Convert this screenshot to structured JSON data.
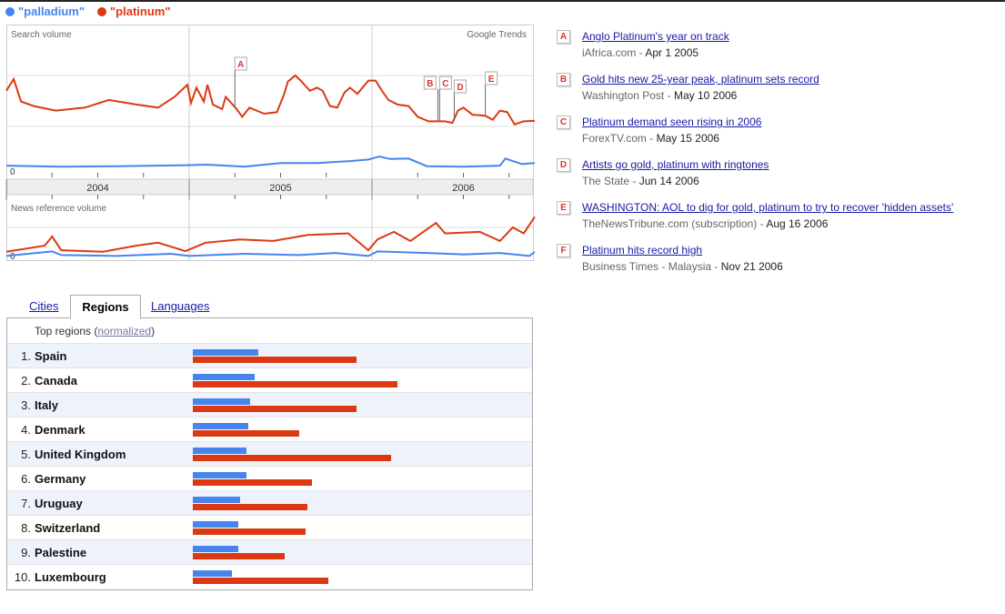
{
  "legend": [
    {
      "label": "\"palladium\"",
      "color": "#4684ee"
    },
    {
      "label": "\"platinum\"",
      "color": "#dc3912"
    }
  ],
  "chart_data": [
    {
      "type": "line",
      "title": "Search volume",
      "brand": "Google Trends",
      "x_range": [
        2004.0,
        2006.89
      ],
      "x_ticks": [
        "2004",
        "2005",
        "2006"
      ],
      "y_zero_label": "0",
      "grid": true,
      "series": [
        {
          "name": "\"platinum\"",
          "color": "#dc3912",
          "points": [
            [
              0,
              1.7
            ],
            [
              0.04,
              1.93
            ],
            [
              0.08,
              1.49
            ],
            [
              0.15,
              1.4
            ],
            [
              0.27,
              1.31
            ],
            [
              0.43,
              1.37
            ],
            [
              0.56,
              1.52
            ],
            [
              0.71,
              1.43
            ],
            [
              0.83,
              1.37
            ],
            [
              0.92,
              1.58
            ],
            [
              0.99,
              1.82
            ],
            [
              1.01,
              1.46
            ],
            [
              1.04,
              1.76
            ],
            [
              1.08,
              1.49
            ],
            [
              1.1,
              1.82
            ],
            [
              1.13,
              1.43
            ],
            [
              1.18,
              1.34
            ],
            [
              1.2,
              1.58
            ],
            [
              1.26,
              1.34
            ],
            [
              1.29,
              1.19
            ],
            [
              1.33,
              1.37
            ],
            [
              1.41,
              1.25
            ],
            [
              1.48,
              1.28
            ],
            [
              1.52,
              1.64
            ],
            [
              1.54,
              1.88
            ],
            [
              1.58,
              2.0
            ],
            [
              1.61,
              1.9
            ],
            [
              1.66,
              1.7
            ],
            [
              1.7,
              1.76
            ],
            [
              1.73,
              1.7
            ],
            [
              1.77,
              1.4
            ],
            [
              1.81,
              1.37
            ],
            [
              1.85,
              1.67
            ],
            [
              1.88,
              1.76
            ],
            [
              1.92,
              1.64
            ],
            [
              1.98,
              1.9
            ],
            [
              2.02,
              1.9
            ],
            [
              2.06,
              1.67
            ],
            [
              2.09,
              1.52
            ],
            [
              2.14,
              1.43
            ],
            [
              2.2,
              1.4
            ],
            [
              2.25,
              1.19
            ],
            [
              2.31,
              1.1
            ],
            [
              2.4,
              1.1
            ],
            [
              2.44,
              1.07
            ],
            [
              2.47,
              1.31
            ],
            [
              2.5,
              1.37
            ],
            [
              2.55,
              1.23
            ],
            [
              2.62,
              1.21
            ],
            [
              2.66,
              1.13
            ],
            [
              2.7,
              1.31
            ],
            [
              2.74,
              1.28
            ],
            [
              2.78,
              1.04
            ],
            [
              2.83,
              1.1
            ],
            [
              2.89,
              1.11
            ]
          ]
        },
        {
          "name": "\"palladium\"",
          "color": "#4684ee",
          "points": [
            [
              0,
              0.23
            ],
            [
              0.3,
              0.21
            ],
            [
              0.6,
              0.22
            ],
            [
              0.99,
              0.24
            ],
            [
              1.1,
              0.25
            ],
            [
              1.3,
              0.21
            ],
            [
              1.5,
              0.28
            ],
            [
              1.7,
              0.28
            ],
            [
              1.88,
              0.32
            ],
            [
              1.98,
              0.35
            ],
            [
              2.04,
              0.41
            ],
            [
              2.1,
              0.36
            ],
            [
              2.2,
              0.37
            ],
            [
              2.3,
              0.22
            ],
            [
              2.5,
              0.21
            ],
            [
              2.7,
              0.23
            ],
            [
              2.73,
              0.37
            ],
            [
              2.82,
              0.26
            ],
            [
              2.89,
              0.28
            ]
          ]
        }
      ],
      "annotations": [
        {
          "letter": "A",
          "t": 1.25
        },
        {
          "letter": "B",
          "t": 2.36
        },
        {
          "letter": "C",
          "t": 2.37
        },
        {
          "letter": "D",
          "t": 2.45
        },
        {
          "letter": "E",
          "t": 2.62
        }
      ]
    },
    {
      "type": "line",
      "title": "News reference volume",
      "y_zero_label": "0",
      "x_range": [
        2004.0,
        2006.89
      ],
      "series": [
        {
          "name": "\"platinum\"",
          "color": "#dc3912",
          "points": [
            [
              0,
              0.19
            ],
            [
              0.21,
              0.39
            ],
            [
              0.25,
              0.7
            ],
            [
              0.3,
              0.24
            ],
            [
              0.53,
              0.19
            ],
            [
              0.71,
              0.39
            ],
            [
              0.83,
              0.49
            ],
            [
              0.98,
              0.21
            ],
            [
              1.09,
              0.49
            ],
            [
              1.28,
              0.6
            ],
            [
              1.46,
              0.55
            ],
            [
              1.65,
              0.75
            ],
            [
              1.87,
              0.8
            ],
            [
              1.98,
              0.24
            ],
            [
              2.03,
              0.6
            ],
            [
              2.12,
              0.85
            ],
            [
              2.21,
              0.55
            ],
            [
              2.35,
              1.15
            ],
            [
              2.4,
              0.8
            ],
            [
              2.59,
              0.85
            ],
            [
              2.7,
              0.55
            ],
            [
              2.77,
              1.0
            ],
            [
              2.83,
              0.8
            ],
            [
              2.89,
              1.35
            ]
          ]
        },
        {
          "name": "\"palladium\"",
          "color": "#4684ee",
          "points": [
            [
              0,
              0.05
            ],
            [
              0.25,
              0.2
            ],
            [
              0.3,
              0.08
            ],
            [
              0.6,
              0.05
            ],
            [
              0.9,
              0.12
            ],
            [
              1.0,
              0.05
            ],
            [
              1.3,
              0.12
            ],
            [
              1.6,
              0.08
            ],
            [
              1.8,
              0.15
            ],
            [
              1.98,
              0.05
            ],
            [
              2.03,
              0.2
            ],
            [
              2.3,
              0.15
            ],
            [
              2.5,
              0.1
            ],
            [
              2.7,
              0.15
            ],
            [
              2.86,
              0.05
            ],
            [
              2.89,
              0.18
            ]
          ]
        }
      ]
    }
  ],
  "news": [
    {
      "letter": "A",
      "title": "Anglo Platinum's year on track",
      "source": "iAfrica.com",
      "date": "Apr 1 2005"
    },
    {
      "letter": "B",
      "title": "Gold hits new 25-year peak, platinum sets record",
      "source": "Washington Post",
      "date": "May 10 2006"
    },
    {
      "letter": "C",
      "title": "Platinum demand seen rising in 2006",
      "source": "ForexTV.com",
      "date": "May 15 2006"
    },
    {
      "letter": "D",
      "title": "Artists go gold, platinum with ringtones",
      "source": "The State",
      "date": "Jun 14 2006"
    },
    {
      "letter": "E",
      "title": "WASHINGTON: AOL to dig for gold, platinum to try to recover 'hidden assets'",
      "source": "TheNewsTribune.com (subscription)",
      "date": "Aug 16 2006"
    },
    {
      "letter": "F",
      "title": "Platinum hits record high",
      "source": "Business Times - Malaysia",
      "date": "Nov 21 2006"
    }
  ],
  "tabs": {
    "cities": "Cities",
    "regions": "Regions",
    "languages": "Languages"
  },
  "regions": {
    "heading": "Top regions (",
    "normalized": "normalized",
    "heading_end": ")",
    "rows": [
      {
        "rank": "1.",
        "name": "Spain",
        "palladium": 32,
        "platinum": 80
      },
      {
        "rank": "2.",
        "name": "Canada",
        "palladium": 30,
        "platinum": 100
      },
      {
        "rank": "3.",
        "name": "Italy",
        "palladium": 28,
        "platinum": 80
      },
      {
        "rank": "4.",
        "name": "Denmark",
        "palladium": 27,
        "platinum": 52
      },
      {
        "rank": "5.",
        "name": "United Kingdom",
        "palladium": 26,
        "platinum": 97
      },
      {
        "rank": "6.",
        "name": "Germany",
        "palladium": 26,
        "platinum": 58
      },
      {
        "rank": "7.",
        "name": "Uruguay",
        "palladium": 23,
        "platinum": 56
      },
      {
        "rank": "8.",
        "name": "Switzerland",
        "palladium": 22,
        "platinum": 55
      },
      {
        "rank": "9.",
        "name": "Palestine",
        "palladium": 22,
        "platinum": 45
      },
      {
        "rank": "10.",
        "name": "Luxembourg",
        "palladium": 19,
        "platinum": 66
      }
    ]
  }
}
